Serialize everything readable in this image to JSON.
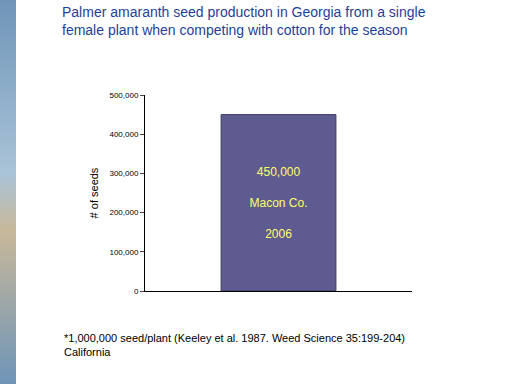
{
  "chart_data": {
    "type": "bar",
    "title": "Palmer amaranth seed production in Georgia from a single female plant when competing with cotton for the season",
    "categories": [
      null
    ],
    "values": [
      450000
    ],
    "value_labels": [
      "450,000"
    ],
    "annotations": [
      "Macon Co.",
      "2006"
    ],
    "footnote": [
      "*1,000,000 seed/plant (Keeley et al. 1987. Weed Science 35:199-204)",
      "California"
    ],
    "y_label": "# of seeds",
    "color": "#5e5b91",
    "ylim": [
      0,
      500000
    ],
    "yticks": [
      0,
      {
        "value": 100000,
        "label": "100,000"
      },
      {
        "value": 200000,
        "label": "200,000"
      },
      {
        "value": 300000,
        "label": "300,000"
      },
      {
        "value": 400000,
        "label": "400,000"
      },
      {
        "value": 500000,
        "label": "500,000"
      }
    ],
    "grid": false,
    "data_labels": true
  }
}
